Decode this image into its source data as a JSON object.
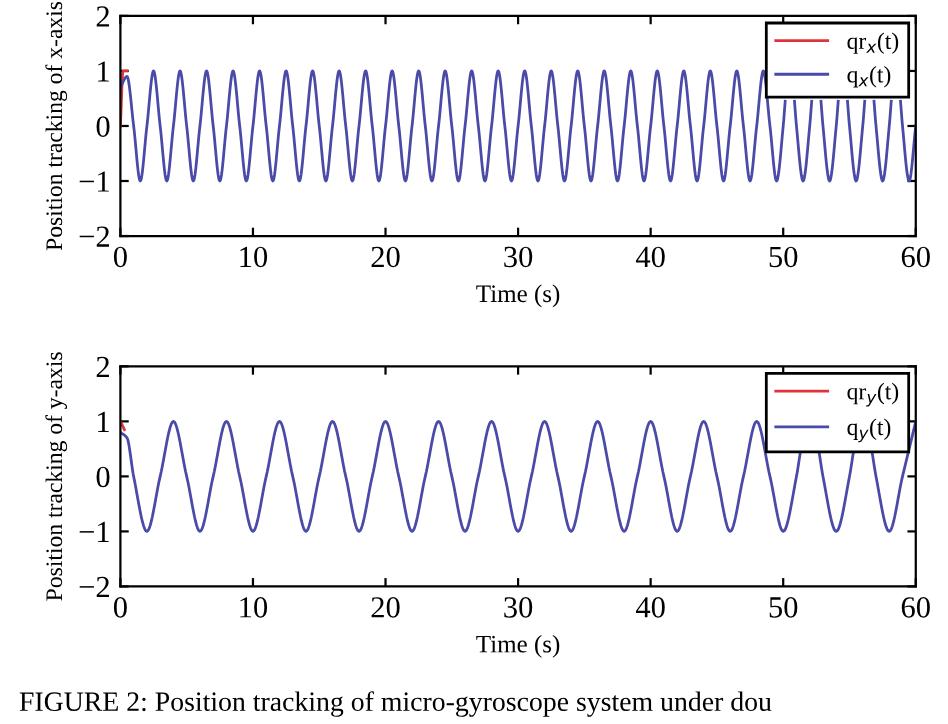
{
  "chart_data": [
    {
      "type": "line",
      "xlabel": "Time (s)",
      "ylabel": "Position tracking of x-axis",
      "xlim": [
        0,
        60
      ],
      "ylim": [
        -2,
        2
      ],
      "xticks": [
        0,
        10,
        20,
        30,
        40,
        50,
        60
      ],
      "yticks": [
        -2,
        -1,
        0,
        1,
        2
      ],
      "grid": false,
      "legend": "top right",
      "line_style": "solid",
      "series": [
        {
          "name": "qr$_{x}$(t)",
          "color": "#e0343c",
          "x": [
            0,
            0.2,
            0.5
          ],
          "values": [
            0,
            1,
            1
          ]
        },
        {
          "name": "q$_{x}$(t)",
          "color": "#4a4aa8",
          "x": [
            0,
            0.5,
            1,
            1.5,
            2,
            2.5,
            3,
            3.5,
            4,
            4.5,
            5,
            5.5,
            6,
            6.5,
            7,
            7.5,
            8,
            8.5,
            9,
            9.5,
            10,
            10.5,
            11,
            11.5,
            12,
            12.5,
            13,
            13.5,
            14,
            14.5,
            15,
            15.5,
            16,
            16.5,
            17,
            17.5,
            18,
            18.5,
            19,
            19.5,
            20,
            20.5,
            21,
            21.5,
            22,
            22.5,
            23,
            23.5,
            24,
            24.5,
            25,
            25.5,
            26,
            26.5,
            27,
            27.5,
            28,
            28.5,
            29,
            29.5,
            30,
            30.5,
            31,
            31.5,
            32,
            32.5,
            33,
            33.5,
            34,
            34.5,
            35,
            35.5,
            36,
            36.5,
            37,
            37.5,
            38,
            38.5,
            39,
            39.5,
            40,
            40.5,
            41,
            41.5,
            42,
            42.5,
            43,
            43.5,
            44,
            44.5,
            45,
            45.5,
            46,
            46.5,
            47,
            47.5,
            48,
            48.5,
            49,
            49.5,
            50,
            50.15,
            50.5,
            50.85,
            51,
            51.5,
            52,
            52.15,
            52.5,
            52.85,
            53,
            53.5,
            54,
            54.15,
            54.5,
            54.85,
            55,
            55.5,
            56,
            56.15,
            56.5,
            56.85,
            57,
            57.5,
            58,
            58.15,
            58.5,
            58.85,
            59,
            59.5,
            60
          ],
          "values": [
            0.7,
            0.9,
            0,
            -1,
            0,
            1,
            0,
            -1,
            0,
            1,
            0,
            -1,
            0,
            1,
            0,
            -1,
            0,
            1,
            0,
            -1,
            0,
            1,
            0,
            -1,
            0,
            1,
            0,
            -1,
            0,
            1,
            0,
            -1,
            0,
            1,
            0,
            -1,
            0,
            1,
            0,
            -1,
            0,
            1,
            0,
            -1,
            0,
            1,
            0,
            -1,
            0,
            1,
            0,
            -1,
            0,
            1,
            0,
            -1,
            0,
            1,
            0,
            -1,
            0,
            1,
            0,
            -1,
            0,
            1,
            0,
            -1,
            0,
            1,
            0,
            -1,
            0,
            1,
            0,
            -1,
            0,
            1,
            0,
            -1,
            0,
            1,
            0,
            -1,
            0,
            1,
            0,
            -1,
            0,
            1,
            0,
            -1,
            0,
            1,
            0,
            -1,
            0,
            1,
            0,
            -1,
            0,
            0.45,
            null,
            0.45,
            0,
            -1,
            0,
            0.45,
            null,
            0.45,
            0,
            -1,
            0,
            0.45,
            null,
            0.45,
            0,
            -1,
            0,
            0.45,
            null,
            0.45,
            0,
            -1,
            0,
            0.45,
            null,
            0.45,
            0,
            -1,
            0
          ]
        }
      ]
    },
    {
      "type": "line",
      "xlabel": "Time (s)",
      "ylabel": "Position tracking of y-axis",
      "xlim": [
        0,
        60
      ],
      "ylim": [
        -2,
        2
      ],
      "xticks": [
        0,
        10,
        20,
        30,
        40,
        50,
        60
      ],
      "yticks": [
        -2,
        -1,
        0,
        1,
        2
      ],
      "grid": false,
      "legend": "top right",
      "line_style": "solid",
      "series": [
        {
          "name": "qr$_{y}$(t)",
          "color": "#e0343c",
          "x": [
            0,
            0.3
          ],
          "values": [
            1,
            0.85
          ]
        },
        {
          "name": "q$_{y}$(t)",
          "color": "#4a4aa8",
          "x": [
            0,
            0.5,
            1,
            2,
            3,
            4,
            5,
            6,
            7,
            8,
            9,
            10,
            11,
            12,
            13,
            14,
            15,
            16,
            17,
            18,
            19,
            20,
            21,
            22,
            23,
            24,
            25,
            26,
            27,
            28,
            29,
            30,
            31,
            32,
            33,
            34,
            35,
            36,
            37,
            38,
            39,
            40,
            41,
            42,
            43,
            44,
            45,
            46,
            47,
            48,
            49,
            50,
            51,
            51.3,
            52,
            52.7,
            53,
            54,
            55,
            55.3,
            56,
            56.7,
            57,
            58,
            59,
            60
          ],
          "values": [
            0.8,
            0.7,
            0,
            -1,
            0,
            1,
            0,
            -1,
            0,
            1,
            0,
            -1,
            0,
            1,
            0,
            -1,
            0,
            1,
            0,
            -1,
            0,
            1,
            0,
            -1,
            0,
            1,
            0,
            -1,
            0,
            1,
            0,
            -1,
            0,
            1,
            0,
            -1,
            0,
            1,
            0,
            -1,
            0,
            1,
            0,
            -1,
            0,
            1,
            0,
            -1,
            0,
            1,
            0,
            -1,
            0,
            0.45,
            null,
            0.45,
            0,
            -1,
            0,
            0.45,
            null,
            0.45,
            0,
            -1,
            0,
            1
          ]
        }
      ],
      "annotations": [
        "FIGURE 2: Position tracking of micro-gyroscope system under dou"
      ]
    }
  ]
}
